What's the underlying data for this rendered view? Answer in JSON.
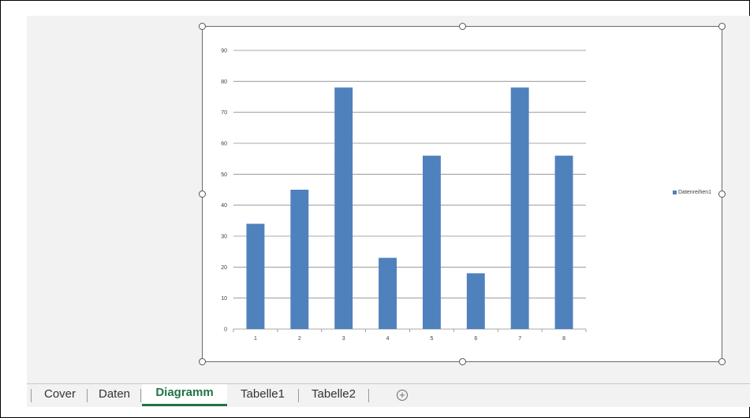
{
  "sheet_tabs": [
    {
      "label": "Cover",
      "active": false
    },
    {
      "label": "Daten",
      "active": false
    },
    {
      "label": "Diagramm",
      "active": true
    },
    {
      "label": "Tabelle1",
      "active": false
    },
    {
      "label": "Tabelle2",
      "active": false
    }
  ],
  "add_sheet_symbol": "+",
  "colors": {
    "accent_green": "#217346",
    "series_blue": "#4f81bd"
  },
  "chart_data": {
    "type": "bar",
    "categories": [
      "1",
      "2",
      "3",
      "4",
      "5",
      "6",
      "7",
      "8"
    ],
    "series": [
      {
        "name": "Datenreihen1",
        "values": [
          34,
          45,
          78,
          23,
          56,
          18,
          78,
          56
        ]
      }
    ],
    "ylim": [
      0,
      90
    ],
    "yticks": [
      "0",
      "10",
      "20",
      "30",
      "40",
      "50",
      "60",
      "70",
      "80",
      "90"
    ],
    "grid": true,
    "legend_position": "right"
  }
}
